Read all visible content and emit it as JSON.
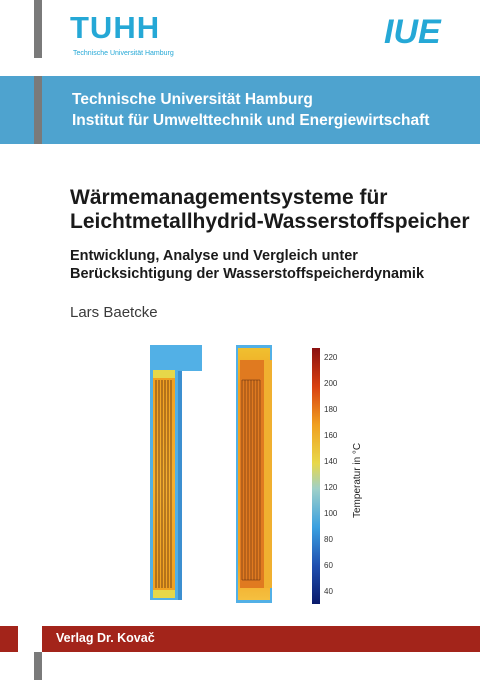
{
  "logos": {
    "tuhh": {
      "name": "TUHH",
      "subtitle": "Technische Universität Hamburg",
      "color": "#25a8d6"
    },
    "iue": {
      "name": "IUE",
      "color": "#25a8d6"
    }
  },
  "band": {
    "line1": "Technische Universität Hamburg",
    "line2": "Institut für Umwelttechnik und Energiewirtschaft",
    "color": "#4ea3cf"
  },
  "title": {
    "line1": "Wärmemanagementsysteme für",
    "line2": "Leichtmetallhydrid-Wasserstoffspeicher"
  },
  "subtitle": {
    "line1": "Entwicklung, Analyse und Vergleich unter",
    "line2": "Berücksichtigung der Wasserstoffspeicherdynamik"
  },
  "author": "Lars Baetcke",
  "figure": {
    "colorbar_label": "Temperatur in °C",
    "ticks": [
      "220",
      "200",
      "180",
      "160",
      "140",
      "120",
      "100",
      "80",
      "60",
      "40"
    ]
  },
  "bottom": {
    "publisher": "Verlag Dr. Kovač",
    "color": "#a3241a"
  }
}
